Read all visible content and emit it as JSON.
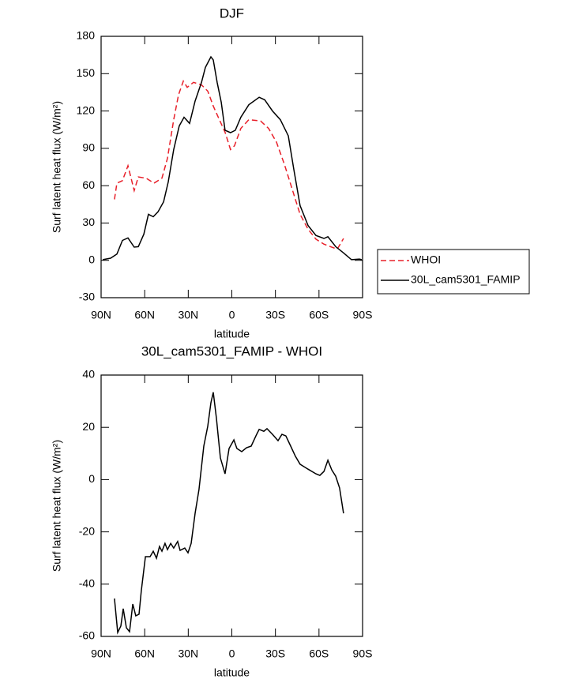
{
  "chart_data": [
    {
      "type": "line",
      "title": "DJF",
      "x_label": "latitude",
      "y_label": "Surf latent heat flux (W/m²)",
      "xlim": [
        90,
        -90
      ],
      "ylim": [
        -30,
        180
      ],
      "xticks": [
        {
          "value": 90,
          "label": "90N"
        },
        {
          "value": 60,
          "label": "60N"
        },
        {
          "value": 30,
          "label": "30N"
        },
        0,
        {
          "value": -30,
          "label": "30S"
        },
        {
          "value": -60,
          "label": "60S"
        },
        {
          "value": -90,
          "label": "90S"
        }
      ],
      "yticks": [
        -30,
        0,
        30,
        60,
        90,
        120,
        150,
        180
      ],
      "legend": "right",
      "series": [
        {
          "name": "WHOI",
          "color": "#e8202a",
          "style": "dashed",
          "x": [
            80.8,
            79.1,
            75.3,
            71.5,
            67.2,
            64.4,
            59.0,
            53.6,
            48.1,
            44.3,
            40.0,
            36.7,
            33.4,
            30.7,
            26.4,
            20.9,
            16.6,
            12.8,
            9.0,
            4.7,
            0.9,
            -1.8,
            -6.2,
            -11.7,
            -19.8,
            -25.3,
            -30.7,
            -36.2,
            -41.6,
            -47.0,
            -52.5,
            -57.9,
            -63.4,
            -68.8,
            -72.6,
            -76.9
          ],
          "values": [
            49,
            62,
            64,
            76,
            56,
            67,
            66,
            62,
            66,
            82,
            113,
            133,
            144,
            139,
            143,
            141,
            136,
            124,
            114,
            103,
            89,
            92,
            106,
            113,
            112,
            106,
            95,
            77,
            57,
            37,
            25,
            17,
            13,
            10.6,
            9,
            17.6
          ]
        },
        {
          "name": "30L_cam5301_FAMIP",
          "color": "#000000",
          "style": "solid",
          "x": [
            88.9,
            83.5,
            79.1,
            75.3,
            71.5,
            67.2,
            64.4,
            60.6,
            57.4,
            54.1,
            50.8,
            47.0,
            43.8,
            40.0,
            36.2,
            32.9,
            29.1,
            25.3,
            20.9,
            18.2,
            14.4,
            12.8,
            10.1,
            7.3,
            4.7,
            0.9,
            -2.4,
            -6.2,
            -11.7,
            -18.8,
            -22.6,
            -28.0,
            -33.4,
            -38.9,
            -42.7,
            -47.0,
            -52.5,
            -57.9,
            -63.4,
            -66.1,
            -71.5,
            -76.9,
            -82.4,
            -87.8,
            -89.4
          ],
          "values": [
            0.5,
            1.7,
            5,
            16,
            18,
            10.6,
            11,
            21,
            37,
            35,
            39,
            47,
            63,
            89,
            108,
            115,
            110,
            128,
            143,
            155,
            163.5,
            161,
            143,
            127,
            104.5,
            102.6,
            104.5,
            115,
            125,
            131,
            129,
            120,
            113,
            100,
            73,
            44,
            28,
            20,
            17.6,
            19,
            11,
            6,
            0.5,
            1,
            0.5
          ]
        }
      ]
    },
    {
      "type": "line",
      "title": "30L_cam5301_FAMIP - WHOI",
      "x_label": "latitude",
      "y_label": "Surf latent heat flux (W/m²)",
      "xlim": [
        90,
        -90
      ],
      "ylim": [
        -60,
        40
      ],
      "xticks": [
        {
          "value": 90,
          "label": "90N"
        },
        {
          "value": 60,
          "label": "60N"
        },
        {
          "value": 30,
          "label": "30N"
        },
        0,
        {
          "value": -30,
          "label": "30S"
        },
        {
          "value": -60,
          "label": "60S"
        },
        {
          "value": -90,
          "label": "90S"
        }
      ],
      "yticks": [
        -60,
        -40,
        -20,
        0,
        20,
        40
      ],
      "series": [
        {
          "color": "#000000",
          "style": "solid",
          "x": [
            80.8,
            78.6,
            76.4,
            74.8,
            72.6,
            70.4,
            68.2,
            66.1,
            63.9,
            62.3,
            59.5,
            56.3,
            54.1,
            51.9,
            49.8,
            48.1,
            46.0,
            44.3,
            42.1,
            40.0,
            37.3,
            35.6,
            32.4,
            30.2,
            28.0,
            25.3,
            22.6,
            19.3,
            16.6,
            14.4,
            12.8,
            10.6,
            7.9,
            4.7,
            1.9,
            -1.4,
            -3.5,
            -6.8,
            -10.1,
            -13.3,
            -17.1,
            -18.8,
            -22.0,
            -24.2,
            -28.0,
            -31.8,
            -34.5,
            -37.2,
            -40.5,
            -43.8,
            -47.0,
            -52.5,
            -57.9,
            -60.6,
            -63.4,
            -66.1,
            -68.8,
            -71.5,
            -74.2,
            -76.9
          ],
          "values": [
            -45.5,
            -58.5,
            -56,
            -49.4,
            -56.7,
            -58.2,
            -47.6,
            -52.1,
            -51.5,
            -42.5,
            -29.5,
            -29.5,
            -27.4,
            -30.1,
            -25.6,
            -27.4,
            -24.4,
            -26.8,
            -24.4,
            -26.2,
            -23.7,
            -27.1,
            -26.2,
            -28,
            -24.4,
            -12.9,
            -3.8,
            12.8,
            20.4,
            29.4,
            33.4,
            23.4,
            8.3,
            2.2,
            11.9,
            15.2,
            11.9,
            10.7,
            12.2,
            12.8,
            17.3,
            19.2,
            18.5,
            19.5,
            17.3,
            14.9,
            17.3,
            16.7,
            12.8,
            8.9,
            5.9,
            4,
            2.2,
            1.6,
            3.1,
            7.4,
            3.7,
            1.3,
            -3.2,
            -12.9
          ]
        }
      ]
    }
  ]
}
